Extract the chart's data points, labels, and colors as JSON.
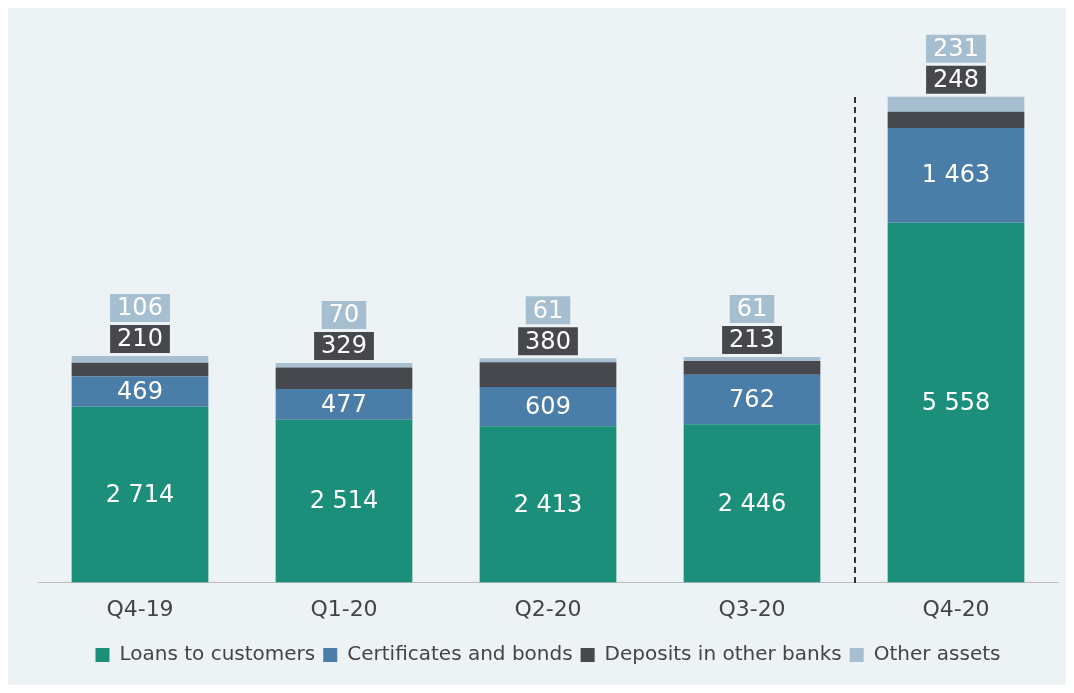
{
  "chart_data": {
    "type": "bar",
    "stacked": true,
    "data_labels": true,
    "legend": "bottom",
    "grid": false,
    "categories": [
      "Q4-19",
      "Q1-20",
      "Q2-20",
      "Q3-20",
      "Q4-20"
    ],
    "series": [
      {
        "name": "Loans to customers",
        "color": "#1b8f7a",
        "values": [
          2714,
          2514,
          2413,
          2446,
          5558
        ]
      },
      {
        "name": "Certificates and bonds",
        "color": "#4a7ea8",
        "values": [
          469,
          477,
          609,
          762,
          1463
        ]
      },
      {
        "name": "Deposits in other banks",
        "color": "#47484d",
        "values": [
          210,
          329,
          380,
          213,
          248
        ]
      },
      {
        "name": "Other assets",
        "color": "#a6bfd0",
        "values": [
          106,
          70,
          61,
          61,
          231
        ]
      }
    ]
  }
}
